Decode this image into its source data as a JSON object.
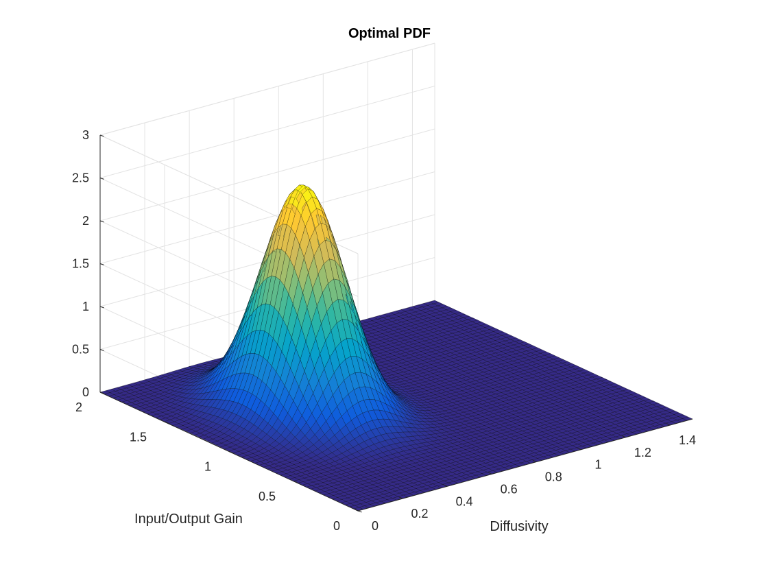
{
  "chart_data": {
    "type": "surface",
    "title": "Optimal PDF",
    "xlabel": "Diffusivity",
    "ylabel": "Input/Output Gain",
    "zlabel": "",
    "xlim": [
      0,
      1.5
    ],
    "ylim": [
      0,
      2
    ],
    "zlim": [
      0,
      3
    ],
    "x_ticks": [
      "0",
      "0.2",
      "0.4",
      "0.6",
      "0.8",
      "1",
      "1.2",
      "1.4"
    ],
    "y_ticks": [
      "0",
      "0.5",
      "1",
      "1.5",
      "2"
    ],
    "z_ticks": [
      "0",
      "0.5",
      "1",
      "1.5",
      "2",
      "2.5",
      "3"
    ],
    "peak": {
      "x": 0.45,
      "y": 1.2,
      "z": 2.65
    },
    "spread": {
      "x": 0.13,
      "y": 0.25
    },
    "grid": true,
    "colormap": "parula",
    "colors": [
      "#352a87",
      "#0f5cdd",
      "#1481d6",
      "#06a4ca",
      "#2eb7a4",
      "#87bf77",
      "#d1bb59",
      "#fec832",
      "#f9fb0e"
    ],
    "mesh_color": "#000000"
  }
}
